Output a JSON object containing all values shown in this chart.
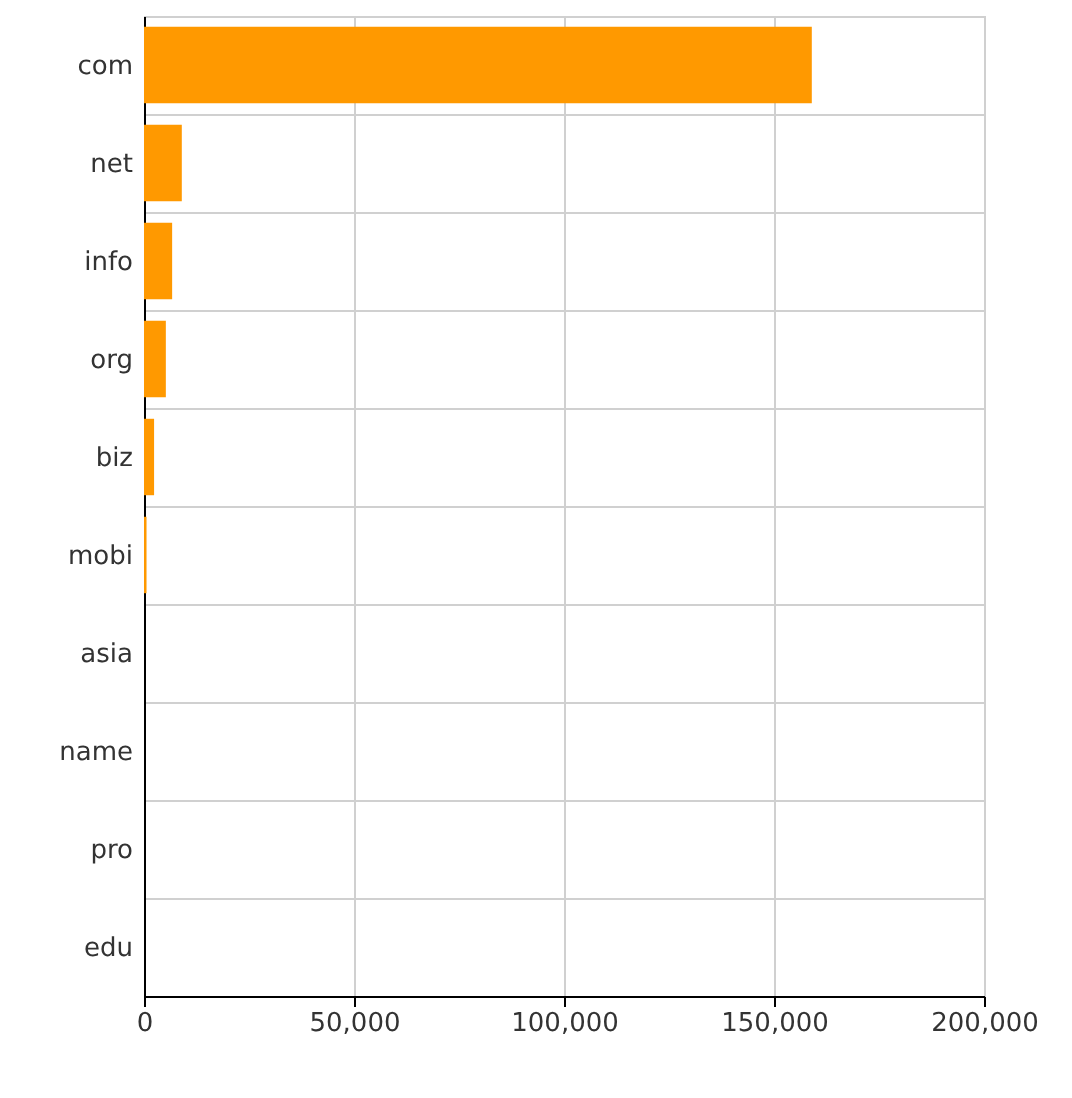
{
  "chart_data": {
    "type": "bar",
    "orientation": "horizontal",
    "categories": [
      "com",
      "net",
      "info",
      "org",
      "biz",
      "mobi",
      "asia",
      "name",
      "pro",
      "edu"
    ],
    "values": [
      159000,
      9000,
      6700,
      5200,
      2400,
      600,
      0,
      0,
      0,
      0
    ],
    "color": "#ff9900",
    "xlim": [
      0,
      200000
    ],
    "xticks": [
      0,
      {
        "value": 50000,
        "label": "50,000"
      },
      {
        "value": 100000,
        "label": "100,000"
      },
      {
        "value": 150000,
        "label": "150,000"
      },
      {
        "value": 200000,
        "label": "200,000"
      }
    ],
    "grid": true
  }
}
